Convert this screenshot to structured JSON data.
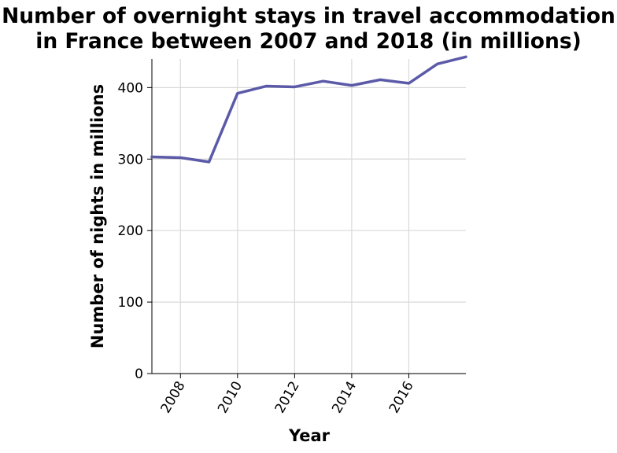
{
  "chart_data": {
    "type": "line",
    "title": "Number of overnight stays in travel accommodation in France between 2007 and 2018 (in millions)",
    "title_lines": [
      "Number of overnight stays in travel accommodation",
      "in France between 2007 and 2018 (in millions)"
    ],
    "xlabel": "Year",
    "ylabel": "Number of nights in millions",
    "xlim": [
      2007,
      2018
    ],
    "ylim": [
      0,
      440
    ],
    "xticks": [
      2008,
      2010,
      2012,
      2014,
      2016
    ],
    "yticks": [
      0,
      100,
      200,
      300,
      400
    ],
    "grid": true,
    "line_color": "#5b5aa8",
    "x": [
      2007,
      2008,
      2009,
      2010,
      2011,
      2012,
      2013,
      2014,
      2015,
      2016,
      2017,
      2018
    ],
    "y": [
      303,
      302,
      296,
      392,
      402,
      401,
      409,
      403,
      411,
      406,
      433,
      443
    ]
  }
}
